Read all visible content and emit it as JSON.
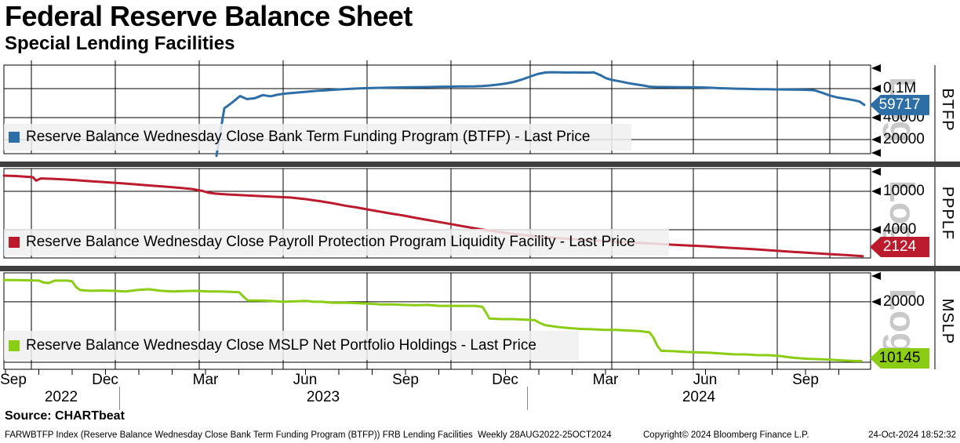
{
  "header": {
    "title": "Federal Reserve Balance Sheet",
    "subtitle": "Special Lending Facilities"
  },
  "footer": {
    "source_label": "Source: CHARTbeat",
    "index_line": "FARWBTFP Index (Reserve Balance Wednesday Close Bank Term Funding Program (BTFP)) FRB Lending Facilities  Weekly 28AUG2022-25OCT2024",
    "copyright": "Copyright© 2024 Bloomberg Finance L.P.",
    "timestamp": "24-Oct-2024 18:52:32"
  },
  "chart_data": {
    "type": "line",
    "title": "Federal Reserve Balance Sheet",
    "subtitle": "Special Lending Facilities",
    "x_axis": {
      "start": "28AUG2022",
      "end": "25OCT2024",
      "frequency": "Weekly",
      "month_labels": [
        "Sep",
        "Dec",
        "Mar",
        "Jun",
        "Sep",
        "Dec",
        "Mar",
        "Jun",
        "Sep"
      ],
      "year_labels": [
        "2022",
        "2023",
        "2024"
      ]
    },
    "panels": [
      {
        "id": "btfp",
        "label": "BTFP",
        "scale": "Log",
        "legend": "Reserve Balance Wednesday Close Bank Term Funding Program (BTFP) - Last Price",
        "color": "#2e6ea6",
        "badge_text_color": "#ffffff",
        "last_price": 59717,
        "last_price_label": "59717",
        "ticks": [
          {
            "value": 100000,
            "label": "0.1M"
          },
          {
            "value": 40000,
            "label": "40000"
          },
          {
            "value": 20000,
            "label": "20000"
          }
        ],
        "series": [
          [
            276,
            11943
          ],
          [
            286,
            53669
          ],
          [
            296,
            64403
          ],
          [
            306,
            79021
          ],
          [
            315,
            71837
          ],
          [
            325,
            73982
          ],
          [
            335,
            81327
          ],
          [
            345,
            78500
          ],
          [
            355,
            83100
          ],
          [
            365,
            85500
          ],
          [
            375,
            87500
          ],
          [
            385,
            89500
          ],
          [
            395,
            91500
          ],
          [
            405,
            93200
          ],
          [
            415,
            94800
          ],
          [
            425,
            96300
          ],
          [
            435,
            97700
          ],
          [
            445,
            99000
          ],
          [
            455,
            100200
          ],
          [
            465,
            101200
          ],
          [
            475,
            102000
          ],
          [
            485,
            102600
          ],
          [
            495,
            103100
          ],
          [
            505,
            103500
          ],
          [
            515,
            104000
          ],
          [
            525,
            104400
          ],
          [
            535,
            104800
          ],
          [
            545,
            105200
          ],
          [
            555,
            105600
          ],
          [
            565,
            106000
          ],
          [
            575,
            106400
          ],
          [
            585,
            106800
          ],
          [
            595,
            107100
          ],
          [
            605,
            107500
          ],
          [
            615,
            108500
          ],
          [
            625,
            110500
          ],
          [
            635,
            113500
          ],
          [
            645,
            117500
          ],
          [
            655,
            123500
          ],
          [
            665,
            132500
          ],
          [
            675,
            145000
          ],
          [
            685,
            158000
          ],
          [
            695,
            166000
          ],
          [
            703,
            167800
          ],
          [
            712,
            166800
          ],
          [
            722,
            166300
          ],
          [
            732,
            166500
          ],
          [
            742,
            166200
          ],
          [
            750,
            165900
          ],
          [
            757,
            167400
          ],
          [
            765,
            154000
          ],
          [
            772,
            140000
          ],
          [
            780,
            131500
          ],
          [
            790,
            126000
          ],
          [
            800,
            119500
          ],
          [
            810,
            114500
          ],
          [
            820,
            110500
          ],
          [
            828,
            106500
          ],
          [
            838,
            105200
          ],
          [
            848,
            105000
          ],
          [
            858,
            104800
          ],
          [
            868,
            104600
          ],
          [
            878,
            104300
          ],
          [
            888,
            104000
          ],
          [
            898,
            103600
          ],
          [
            908,
            102400
          ],
          [
            918,
            101200
          ],
          [
            928,
            100400
          ],
          [
            938,
            99800
          ],
          [
            948,
            99300
          ],
          [
            958,
            98800
          ],
          [
            968,
            98400
          ],
          [
            978,
            98000
          ],
          [
            988,
            97600
          ],
          [
            998,
            97200
          ],
          [
            1008,
            96900
          ],
          [
            1018,
            96600
          ],
          [
            1028,
            96200
          ],
          [
            1038,
            95000
          ],
          [
            1048,
            88000
          ],
          [
            1058,
            80500
          ],
          [
            1068,
            75500
          ],
          [
            1078,
            72500
          ],
          [
            1088,
            69500
          ],
          [
            1096,
            66500
          ],
          [
            1102,
            59717
          ]
        ]
      },
      {
        "id": "ppplf",
        "label": "PPPLF",
        "scale": "Log",
        "legend": "Reserve Balance Wednesday Close Payroll Protection Program Liquidity Facility - Last Price",
        "color": "#bb1b2d",
        "badge_text_color": "#ffffff",
        "last_price": 2124,
        "last_price_label": "2124",
        "ticks": [
          {
            "value": 10000,
            "label": "10000"
          },
          {
            "value": 4000,
            "label": "4000"
          }
        ],
        "series": [
          [
            5,
            14540
          ],
          [
            20,
            14400
          ],
          [
            35,
            14150
          ],
          [
            42,
            14010
          ],
          [
            46,
            12900
          ],
          [
            52,
            13600
          ],
          [
            65,
            13500
          ],
          [
            80,
            13300
          ],
          [
            95,
            13100
          ],
          [
            110,
            12800
          ],
          [
            125,
            12600
          ],
          [
            140,
            12350
          ],
          [
            155,
            12100
          ],
          [
            170,
            11850
          ],
          [
            185,
            11600
          ],
          [
            200,
            11350
          ],
          [
            215,
            11100
          ],
          [
            230,
            10850
          ],
          [
            245,
            10550
          ],
          [
            258,
            10100
          ],
          [
            265,
            9700
          ],
          [
            275,
            9450
          ],
          [
            290,
            9280
          ],
          [
            310,
            9110
          ],
          [
            330,
            8940
          ],
          [
            350,
            8780
          ],
          [
            370,
            8620
          ],
          [
            390,
            8300
          ],
          [
            410,
            7850
          ],
          [
            425,
            7500
          ],
          [
            440,
            7100
          ],
          [
            455,
            6800
          ],
          [
            470,
            6450
          ],
          [
            485,
            6150
          ],
          [
            500,
            5850
          ],
          [
            515,
            5600
          ],
          [
            530,
            5300
          ],
          [
            545,
            5050
          ],
          [
            560,
            4800
          ],
          [
            575,
            4570
          ],
          [
            590,
            4350
          ],
          [
            605,
            4140
          ],
          [
            620,
            3950
          ],
          [
            635,
            3800
          ],
          [
            650,
            3660
          ],
          [
            665,
            3540
          ],
          [
            680,
            3440
          ],
          [
            700,
            3330
          ],
          [
            720,
            3230
          ],
          [
            740,
            3160
          ],
          [
            760,
            3090
          ],
          [
            780,
            3020
          ],
          [
            800,
            2960
          ],
          [
            820,
            2900
          ],
          [
            840,
            2850
          ],
          [
            860,
            2790
          ],
          [
            880,
            2740
          ],
          [
            900,
            2690
          ],
          [
            920,
            2620
          ],
          [
            940,
            2570
          ],
          [
            960,
            2510
          ],
          [
            980,
            2450
          ],
          [
            1000,
            2390
          ],
          [
            1020,
            2330
          ],
          [
            1040,
            2280
          ],
          [
            1060,
            2230
          ],
          [
            1080,
            2180
          ],
          [
            1100,
            2124
          ]
        ]
      },
      {
        "id": "mslp",
        "label": "MSLP",
        "scale": "Log",
        "legend": "Reserve Balance Wednesday Close MSLP Net Portfolio Holdings - Last Price",
        "color": "#8bcd14",
        "badge_text_color": "#000000",
        "last_price": 10145,
        "last_price_label": "10145",
        "ticks": [
          {
            "value": 20000,
            "label": "20000"
          }
        ],
        "series": [
          [
            5,
            25700
          ],
          [
            20,
            25650
          ],
          [
            35,
            25600
          ],
          [
            50,
            25500
          ],
          [
            55,
            25000
          ],
          [
            62,
            24800
          ],
          [
            70,
            25500
          ],
          [
            85,
            25500
          ],
          [
            92,
            25300
          ],
          [
            97,
            23700
          ],
          [
            102,
            22900
          ],
          [
            115,
            22700
          ],
          [
            130,
            22750
          ],
          [
            145,
            22700
          ],
          [
            160,
            22500
          ],
          [
            175,
            22900
          ],
          [
            190,
            23100
          ],
          [
            205,
            22700
          ],
          [
            220,
            22500
          ],
          [
            235,
            22600
          ],
          [
            250,
            22700
          ],
          [
            265,
            22500
          ],
          [
            280,
            22500
          ],
          [
            295,
            22400
          ],
          [
            305,
            22300
          ],
          [
            310,
            21300
          ],
          [
            316,
            20300
          ],
          [
            330,
            20300
          ],
          [
            345,
            20200
          ],
          [
            360,
            20000
          ],
          [
            375,
            20100
          ],
          [
            390,
            20200
          ],
          [
            400,
            20000
          ],
          [
            410,
            20000
          ],
          [
            425,
            19800
          ],
          [
            440,
            19800
          ],
          [
            455,
            19700
          ],
          [
            470,
            19600
          ],
          [
            485,
            19400
          ],
          [
            500,
            19400
          ],
          [
            515,
            19300
          ],
          [
            530,
            19250
          ],
          [
            545,
            19300
          ],
          [
            560,
            19100
          ],
          [
            575,
            19100
          ],
          [
            590,
            19100
          ],
          [
            605,
            19100
          ],
          [
            615,
            18900
          ],
          [
            619,
            17900
          ],
          [
            624,
            16500
          ],
          [
            640,
            16400
          ],
          [
            655,
            16400
          ],
          [
            670,
            16300
          ],
          [
            682,
            16200
          ],
          [
            688,
            15700
          ],
          [
            695,
            15300
          ],
          [
            710,
            15000
          ],
          [
            725,
            14800
          ],
          [
            740,
            14650
          ],
          [
            755,
            14600
          ],
          [
            770,
            14500
          ],
          [
            785,
            14500
          ],
          [
            800,
            14400
          ],
          [
            815,
            14300
          ],
          [
            828,
            14100
          ],
          [
            833,
            13300
          ],
          [
            838,
            12100
          ],
          [
            843,
            11400
          ],
          [
            858,
            11350
          ],
          [
            875,
            11250
          ],
          [
            890,
            11200
          ],
          [
            905,
            11150
          ],
          [
            920,
            11050
          ],
          [
            935,
            10950
          ],
          [
            950,
            10940
          ],
          [
            965,
            10850
          ],
          [
            980,
            10840
          ],
          [
            995,
            10740
          ],
          [
            1005,
            10600
          ],
          [
            1015,
            10500
          ],
          [
            1030,
            10400
          ],
          [
            1045,
            10360
          ],
          [
            1060,
            10280
          ],
          [
            1075,
            10200
          ],
          [
            1090,
            10145
          ],
          [
            1098,
            10145
          ]
        ]
      }
    ]
  }
}
